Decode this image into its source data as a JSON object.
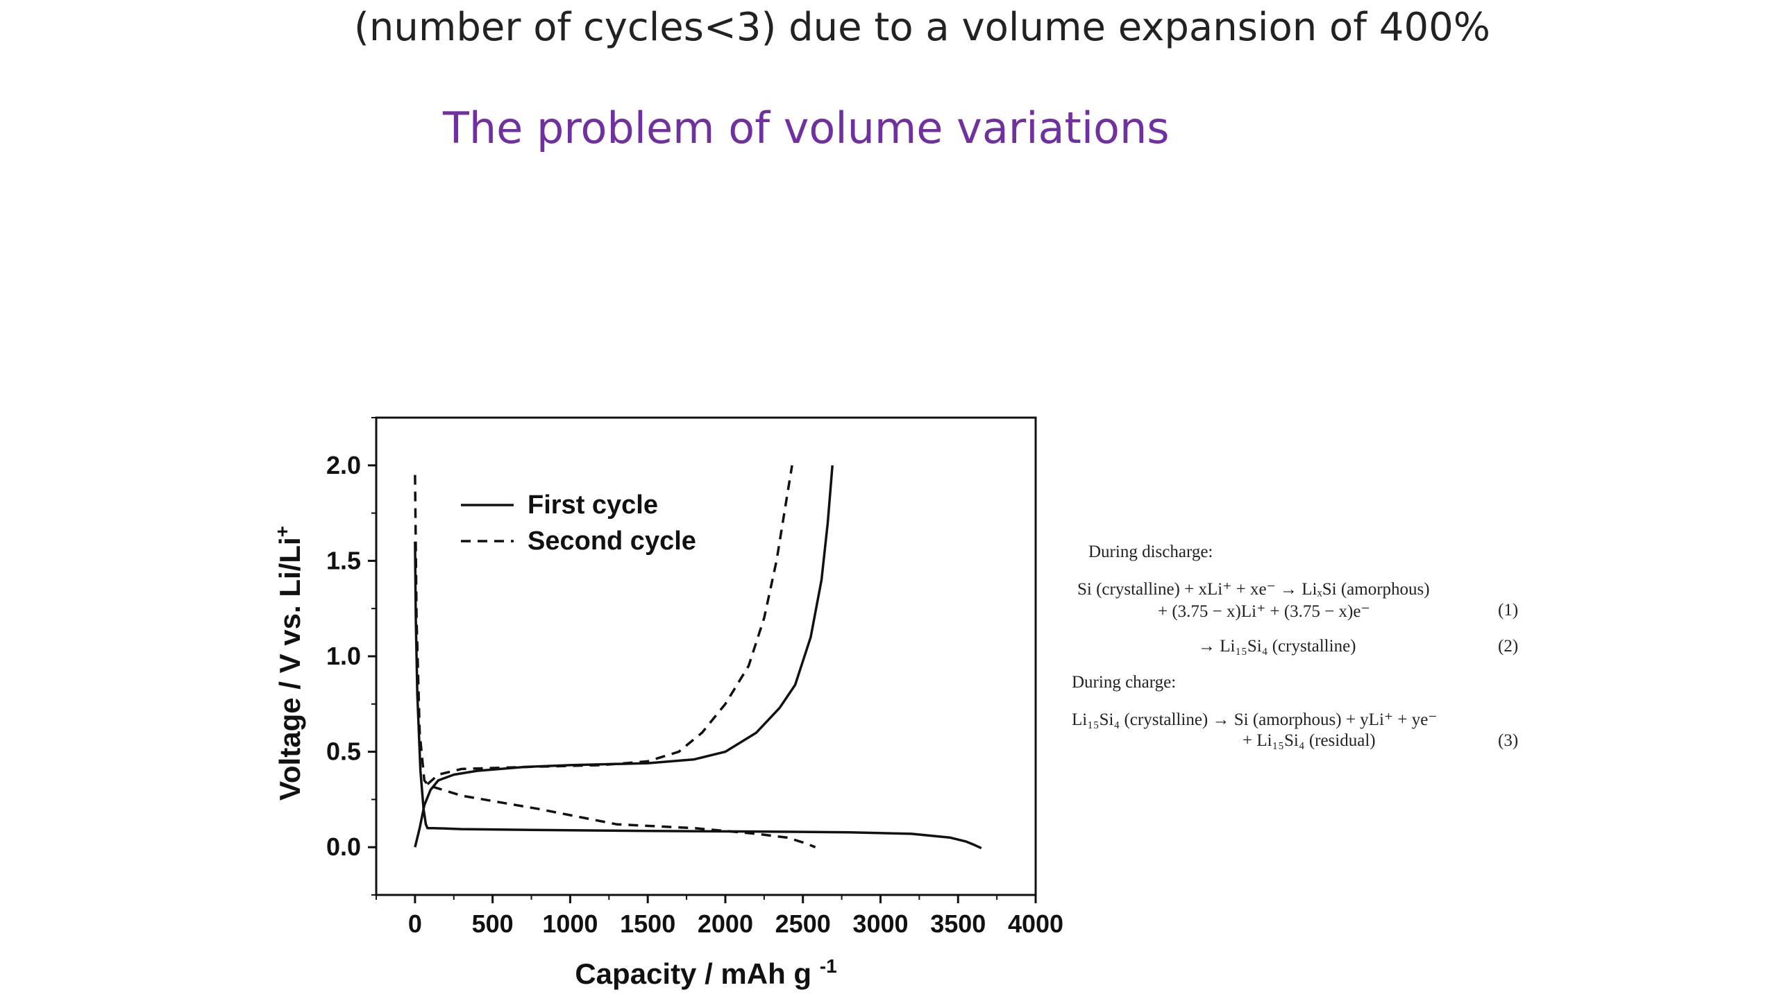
{
  "slide": {
    "header_line": "(number of cycles<3) due to a volume expansion of 400%",
    "title": "The problem of volume variations"
  },
  "chart_data": {
    "type": "line",
    "xlabel": "Capacity / mAh g",
    "xlabel_sup": "-1",
    "ylabel": "Voltage / V vs. Li/Li",
    "ylabel_sup": "+",
    "xlim": [
      -250,
      4000
    ],
    "ylim": [
      -0.25,
      2.25
    ],
    "x_ticks": [
      0,
      500,
      1000,
      1500,
      2000,
      2500,
      3000,
      3500,
      4000
    ],
    "x_tick_labels": [
      "0",
      "500",
      "1000",
      "1500",
      "2000",
      "2500",
      "3000",
      "3500",
      "4000"
    ],
    "y_ticks": [
      0.0,
      0.5,
      1.0,
      1.5,
      2.0
    ],
    "y_tick_labels": [
      "0.0",
      "0.5",
      "1.0",
      "1.5",
      "2.0"
    ],
    "grid": false,
    "legend_position": "top-left",
    "series": [
      {
        "name": "First cycle",
        "style": "solid",
        "color": "#111111",
        "x": [
          0,
          5,
          15,
          35,
          55,
          70,
          80,
          120,
          300,
          800,
          1500,
          2200,
          2800,
          3200,
          3450,
          3550,
          3610,
          3650
        ],
        "y": [
          1.6,
          1.2,
          0.8,
          0.4,
          0.2,
          0.12,
          0.1,
          0.1,
          0.095,
          0.09,
          0.085,
          0.082,
          0.078,
          0.07,
          0.05,
          0.03,
          0.01,
          -0.005
        ],
        "x2": [
          0,
          30,
          60,
          100,
          150,
          250,
          400,
          700,
          1000,
          1500,
          1800,
          2000,
          2200,
          2350,
          2450,
          2550,
          2620,
          2660,
          2690
        ],
        "y2": [
          0.0,
          0.1,
          0.22,
          0.3,
          0.35,
          0.38,
          0.4,
          0.42,
          0.43,
          0.44,
          0.46,
          0.5,
          0.6,
          0.73,
          0.85,
          1.1,
          1.4,
          1.7,
          2.0
        ]
      },
      {
        "name": "Second cycle",
        "style": "dashed",
        "color": "#111111",
        "x": [
          0,
          10,
          30,
          60,
          80,
          100,
          300,
          800,
          1300,
          1800,
          2200,
          2400,
          2520,
          2580
        ],
        "y": [
          1.95,
          1.2,
          0.6,
          0.35,
          0.33,
          0.32,
          0.27,
          0.2,
          0.12,
          0.1,
          0.07,
          0.05,
          0.02,
          0.0
        ],
        "x2": [
          80,
          150,
          300,
          700,
          1200,
          1500,
          1700,
          1850,
          2000,
          2150,
          2250,
          2330,
          2390,
          2430
        ],
        "y2": [
          0.33,
          0.38,
          0.41,
          0.42,
          0.43,
          0.45,
          0.5,
          0.6,
          0.75,
          0.95,
          1.2,
          1.5,
          1.8,
          2.0
        ]
      }
    ]
  },
  "equations": {
    "discharge_heading": "During discharge:",
    "eq1_line1": "Si (crystalline) + xLi⁺ + xe⁻ → LiₓSi (amorphous)",
    "eq1_line2": "+ (3.75 − x)Li⁺ + (3.75 − x)e⁻",
    "eq1_num": "(1)",
    "eq2_line": "→ Li₁₅Si₄ (crystalline)",
    "eq2_num": "(2)",
    "charge_heading": "During charge:",
    "eq3_line1": "Li₁₅Si₄ (crystalline) → Si (amorphous) + yLi⁺ + ye⁻",
    "eq3_line2": "+ Li₁₅Si₄ (residual)",
    "eq3_num": "(3)"
  }
}
